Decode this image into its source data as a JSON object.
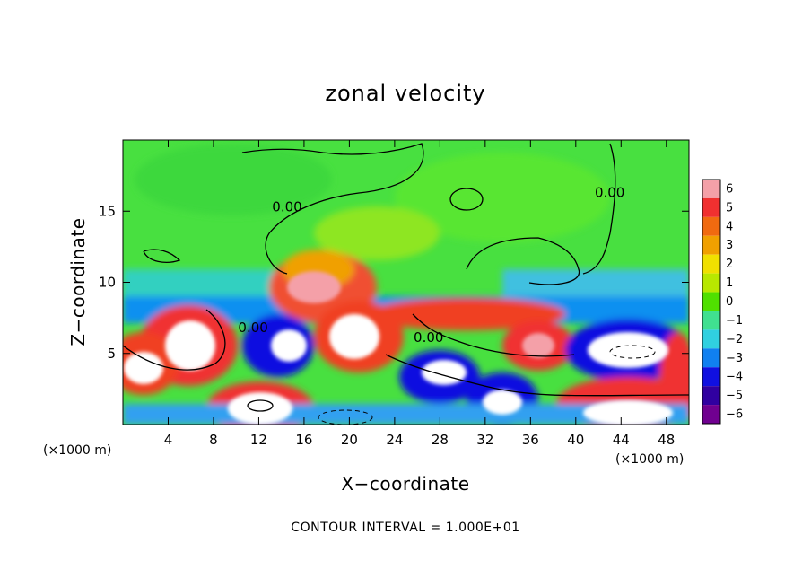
{
  "chart_data": {
    "type": "heatmap",
    "title": "zonal velocity",
    "xlabel": "X−coordinate",
    "ylabel": "Z−coordinate",
    "x_units": "(×1000 m)",
    "y_units": "(×1000 m)",
    "xlim": [
      0,
      50
    ],
    "ylim": [
      0,
      20
    ],
    "x_ticks": [
      4,
      8,
      12,
      16,
      20,
      24,
      28,
      32,
      36,
      40,
      44,
      48
    ],
    "y_ticks": [
      5,
      10,
      15
    ],
    "colorbar": {
      "levels": [
        6,
        5,
        4,
        3,
        2,
        1,
        0,
        -1,
        -2,
        -3,
        -4,
        -5,
        -6
      ],
      "colors": [
        "#f4a0a8",
        "#f03030",
        "#f06a10",
        "#f0a000",
        "#f0e000",
        "#b8e800",
        "#50e000",
        "#40e090",
        "#30d0e0",
        "#1080f0",
        "#1010e0",
        "#3000a0",
        "#700090"
      ]
    },
    "contour_labels": [
      {
        "text": "0.00",
        "x": 11.5,
        "z": 6.5
      },
      {
        "text": "0.00",
        "x": 14.5,
        "z": 15.0
      },
      {
        "text": "0.00",
        "x": 27.0,
        "z": 5.8
      },
      {
        "text": "0.00",
        "x": 43.0,
        "z": 16.0
      }
    ],
    "annotation": "CONTOUR INTERVAL = 1.000E+01",
    "grid": false,
    "legend": "colorbar-right"
  }
}
